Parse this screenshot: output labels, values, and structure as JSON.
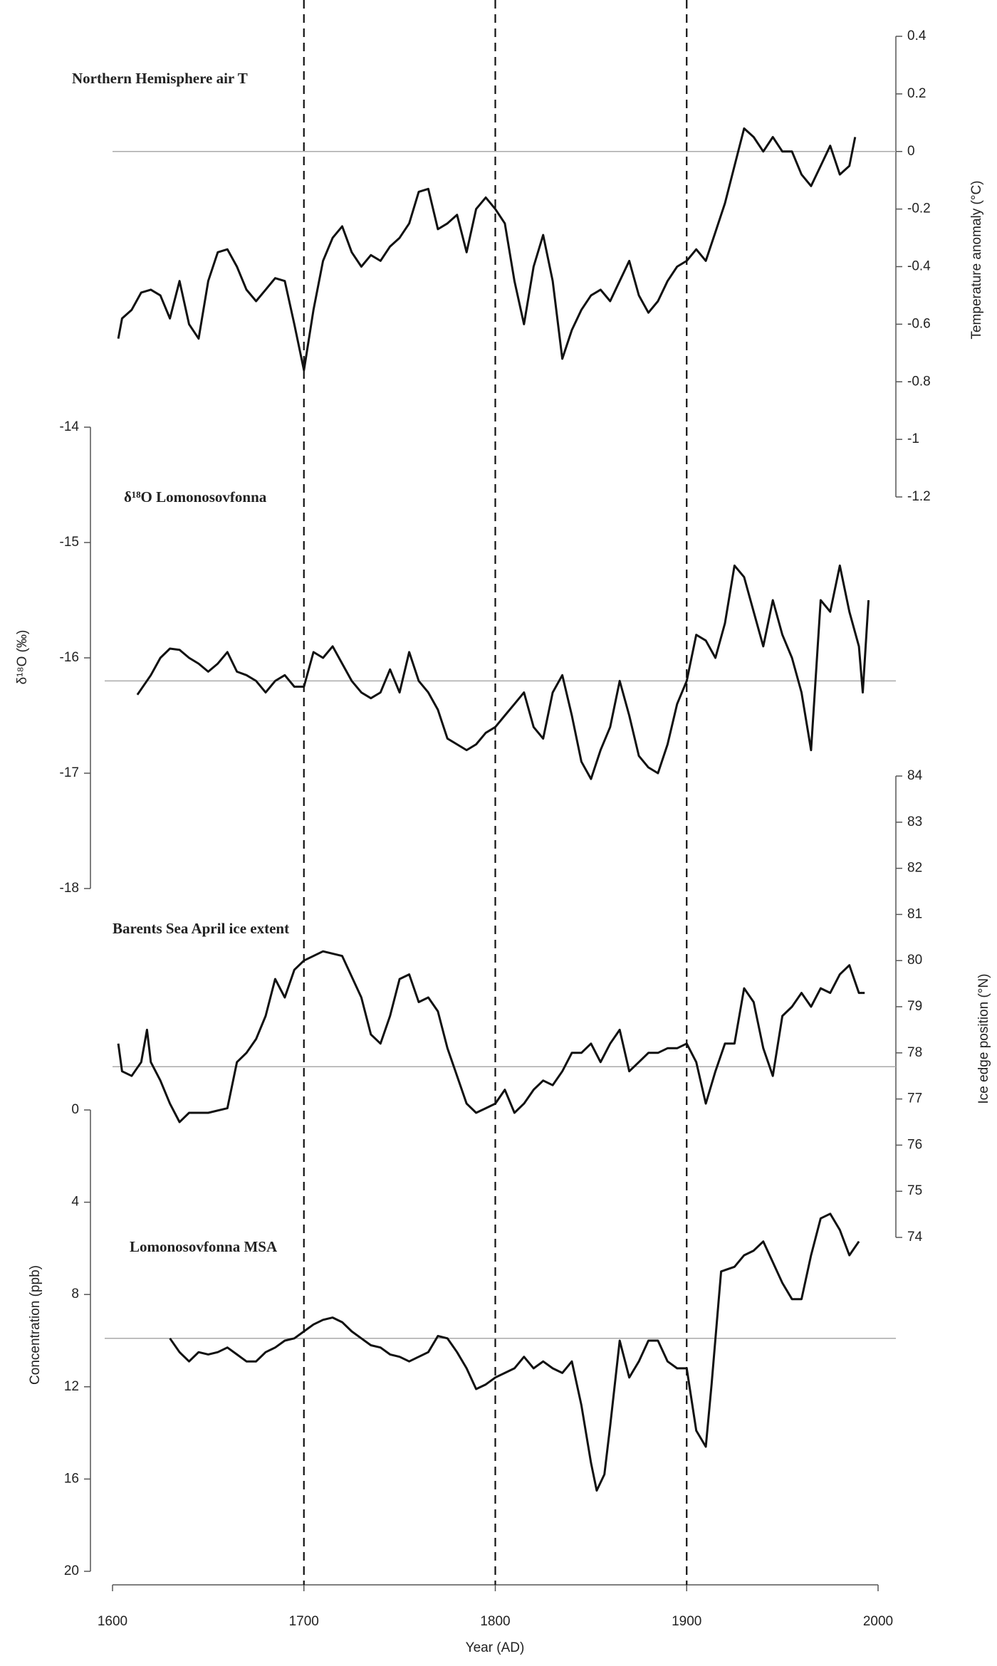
{
  "chart_data": [
    {
      "type": "line",
      "title": "Northern Hemisphere air T",
      "y_label": "Temperature anomaly (°C)",
      "axis_side": "right",
      "color": "#111111",
      "xlim": [
        1600,
        2000
      ],
      "ylim": [
        -1.2,
        0.4
      ],
      "yticks": [
        -1.2,
        -1,
        -0.8,
        -0.6,
        -0.4,
        -0.2,
        0,
        0.2,
        0.4
      ],
      "hline": 0,
      "x": [
        1603,
        1605,
        1610,
        1615,
        1620,
        1625,
        1630,
        1635,
        1640,
        1645,
        1650,
        1655,
        1660,
        1665,
        1670,
        1675,
        1680,
        1685,
        1690,
        1695,
        1700,
        1705,
        1710,
        1715,
        1720,
        1725,
        1730,
        1735,
        1740,
        1745,
        1750,
        1755,
        1760,
        1765,
        1770,
        1775,
        1780,
        1785,
        1790,
        1795,
        1800,
        1805,
        1810,
        1815,
        1820,
        1825,
        1830,
        1835,
        1840,
        1845,
        1850,
        1855,
        1860,
        1865,
        1870,
        1875,
        1880,
        1885,
        1890,
        1895,
        1900,
        1905,
        1910,
        1915,
        1920,
        1925,
        1930,
        1935,
        1940,
        1945,
        1950,
        1955,
        1960,
        1965,
        1970,
        1975,
        1980,
        1985,
        1988
      ],
      "values": [
        -0.65,
        -0.58,
        -0.55,
        -0.49,
        -0.48,
        -0.5,
        -0.58,
        -0.45,
        -0.6,
        -0.65,
        -0.45,
        -0.35,
        -0.34,
        -0.4,
        -0.48,
        -0.52,
        -0.48,
        -0.44,
        -0.45,
        -0.6,
        -0.76,
        -0.55,
        -0.38,
        -0.3,
        -0.26,
        -0.35,
        -0.4,
        -0.36,
        -0.38,
        -0.33,
        -0.3,
        -0.25,
        -0.14,
        -0.13,
        -0.27,
        -0.25,
        -0.22,
        -0.35,
        -0.2,
        -0.16,
        -0.2,
        -0.25,
        -0.45,
        -0.6,
        -0.4,
        -0.29,
        -0.45,
        -0.72,
        -0.62,
        -0.55,
        -0.5,
        -0.48,
        -0.52,
        -0.45,
        -0.38,
        -0.5,
        -0.56,
        -0.52,
        -0.45,
        -0.4,
        -0.38,
        -0.34,
        -0.38,
        -0.28,
        -0.18,
        -0.05,
        0.08,
        0.05,
        0,
        0.05,
        0,
        0,
        -0.08,
        -0.12,
        -0.05,
        0.02,
        -0.08,
        -0.05,
        0.05
      ]
    },
    {
      "type": "line",
      "title": "δ¹⁸O Lomonosovfonna",
      "y_label": "δ¹⁸O (‰)",
      "axis_side": "left",
      "color": "#111111",
      "xlim": [
        1600,
        2000
      ],
      "ylim": [
        -18,
        -14
      ],
      "yticks": [
        -18,
        -17,
        -16,
        -15,
        -14
      ],
      "hline": -16.2,
      "x": [
        1613,
        1620,
        1625,
        1630,
        1635,
        1640,
        1645,
        1650,
        1655,
        1660,
        1665,
        1670,
        1675,
        1680,
        1685,
        1690,
        1695,
        1700,
        1705,
        1710,
        1715,
        1720,
        1725,
        1730,
        1735,
        1740,
        1745,
        1750,
        1755,
        1760,
        1765,
        1770,
        1775,
        1780,
        1785,
        1790,
        1795,
        1800,
        1805,
        1810,
        1815,
        1820,
        1825,
        1830,
        1835,
        1840,
        1845,
        1850,
        1855,
        1860,
        1865,
        1870,
        1875,
        1880,
        1885,
        1890,
        1895,
        1900,
        1905,
        1910,
        1915,
        1920,
        1925,
        1930,
        1935,
        1940,
        1945,
        1950,
        1955,
        1960,
        1965,
        1970,
        1975,
        1980,
        1985,
        1990,
        1992,
        1995
      ],
      "values": [
        -16.32,
        -16.15,
        -16,
        -15.92,
        -15.93,
        -16,
        -16.05,
        -16.12,
        -16.05,
        -15.95,
        -16.12,
        -16.15,
        -16.2,
        -16.3,
        -16.2,
        -16.15,
        -16.25,
        -16.25,
        -15.95,
        -16,
        -15.9,
        -16.05,
        -16.2,
        -16.3,
        -16.35,
        -16.3,
        -16.1,
        -16.3,
        -15.95,
        -16.2,
        -16.3,
        -16.45,
        -16.7,
        -16.75,
        -16.8,
        -16.75,
        -16.65,
        -16.6,
        -16.5,
        -16.4,
        -16.3,
        -16.6,
        -16.7,
        -16.3,
        -16.15,
        -16.5,
        -16.9,
        -17.05,
        -16.8,
        -16.6,
        -16.2,
        -16.5,
        -16.85,
        -16.95,
        -17,
        -16.75,
        -16.4,
        -16.2,
        -15.8,
        -15.85,
        -16,
        -15.7,
        -15.2,
        -15.3,
        -15.6,
        -15.9,
        -15.5,
        -15.8,
        -16,
        -16.3,
        -16.8,
        -15.5,
        -15.6,
        -15.2,
        -15.6,
        -15.9,
        -16.3,
        -15.5
      ]
    },
    {
      "type": "line",
      "title": "Barents Sea April ice extent",
      "y_label": "Ice edge position (°N)",
      "axis_side": "right",
      "color": "#111111",
      "xlim": [
        1600,
        2000
      ],
      "ylim": [
        74,
        84
      ],
      "yticks": [
        74,
        75,
        76,
        77,
        78,
        79,
        80,
        81,
        82,
        83,
        84
      ],
      "hline": 77.7,
      "x": [
        1603,
        1605,
        1610,
        1615,
        1618,
        1620,
        1625,
        1630,
        1635,
        1640,
        1650,
        1660,
        1665,
        1670,
        1675,
        1680,
        1685,
        1690,
        1695,
        1700,
        1710,
        1720,
        1730,
        1735,
        1740,
        1745,
        1750,
        1755,
        1760,
        1765,
        1770,
        1775,
        1780,
        1785,
        1790,
        1795,
        1800,
        1805,
        1810,
        1815,
        1820,
        1825,
        1830,
        1835,
        1840,
        1845,
        1850,
        1855,
        1860,
        1865,
        1870,
        1875,
        1880,
        1885,
        1890,
        1895,
        1900,
        1905,
        1910,
        1915,
        1920,
        1925,
        1930,
        1935,
        1940,
        1945,
        1950,
        1955,
        1960,
        1965,
        1970,
        1975,
        1980,
        1985,
        1990,
        1993
      ],
      "values": [
        78.2,
        77.6,
        77.5,
        77.8,
        78.5,
        77.8,
        77.4,
        76.9,
        76.5,
        76.7,
        76.7,
        76.8,
        77.8,
        78,
        78.3,
        78.8,
        79.6,
        79.2,
        79.8,
        80,
        80.2,
        80.1,
        79.2,
        78.4,
        78.2,
        78.8,
        79.6,
        79.7,
        79.1,
        79.2,
        78.9,
        78.1,
        77.5,
        76.9,
        76.7,
        76.8,
        76.9,
        77.2,
        76.7,
        76.9,
        77.2,
        77.4,
        77.3,
        77.6,
        78,
        78,
        78.2,
        77.8,
        78.2,
        78.5,
        77.6,
        77.8,
        78,
        78,
        78.1,
        78.1,
        78.2,
        77.8,
        76.9,
        77.6,
        78.2,
        78.2,
        79.4,
        79.1,
        78.1,
        77.5,
        78.8,
        79,
        79.3,
        79,
        79.4,
        79.3,
        79.7,
        79.9,
        79.3,
        79.3
      ]
    },
    {
      "type": "line",
      "title": "Lomonosovfonna MSA",
      "y_label": "Concentration (ppb)",
      "axis_side": "left",
      "y_inverted": true,
      "color": "#111111",
      "xlim": [
        1600,
        2000
      ],
      "ylim": [
        0,
        20
      ],
      "yticks": [
        0,
        4,
        8,
        12,
        16,
        20
      ],
      "hline": 9.9,
      "xticks": [
        1600,
        1700,
        1800,
        1900,
        2000
      ],
      "x_label": "Year (AD)",
      "vlines": [
        1700,
        1800,
        1900
      ],
      "x": [
        1630,
        1635,
        1640,
        1645,
        1650,
        1655,
        1660,
        1665,
        1670,
        1675,
        1680,
        1685,
        1690,
        1695,
        1700,
        1705,
        1710,
        1715,
        1720,
        1725,
        1730,
        1735,
        1740,
        1745,
        1750,
        1755,
        1760,
        1765,
        1770,
        1775,
        1780,
        1785,
        1790,
        1795,
        1800,
        1805,
        1810,
        1815,
        1820,
        1825,
        1830,
        1835,
        1840,
        1845,
        1850,
        1853,
        1857,
        1860,
        1865,
        1870,
        1875,
        1880,
        1885,
        1890,
        1895,
        1900,
        1905,
        1910,
        1913,
        1918,
        1925,
        1930,
        1935,
        1940,
        1945,
        1950,
        1955,
        1960,
        1965,
        1970,
        1975,
        1980,
        1985,
        1990
      ],
      "values": [
        9.9,
        10.5,
        10.9,
        10.5,
        10.6,
        10.5,
        10.3,
        10.6,
        10.9,
        10.9,
        10.5,
        10.3,
        10,
        9.9,
        9.6,
        9.3,
        9.1,
        9,
        9.2,
        9.6,
        9.9,
        10.2,
        10.3,
        10.6,
        10.7,
        10.9,
        10.7,
        10.5,
        9.8,
        9.9,
        10.5,
        11.2,
        12.1,
        11.9,
        11.6,
        11.4,
        11.2,
        10.7,
        11.2,
        10.9,
        11.2,
        11.4,
        10.9,
        12.8,
        15.3,
        16.5,
        15.8,
        13.7,
        10,
        11.6,
        10.9,
        10,
        10,
        10.9,
        11.2,
        11.2,
        13.9,
        14.6,
        11.9,
        7,
        6.8,
        6.3,
        6.1,
        5.7,
        6.6,
        7.5,
        8.2,
        8.2,
        6.3,
        4.7,
        4.5,
        5.2,
        6.3,
        5.7
      ]
    }
  ]
}
